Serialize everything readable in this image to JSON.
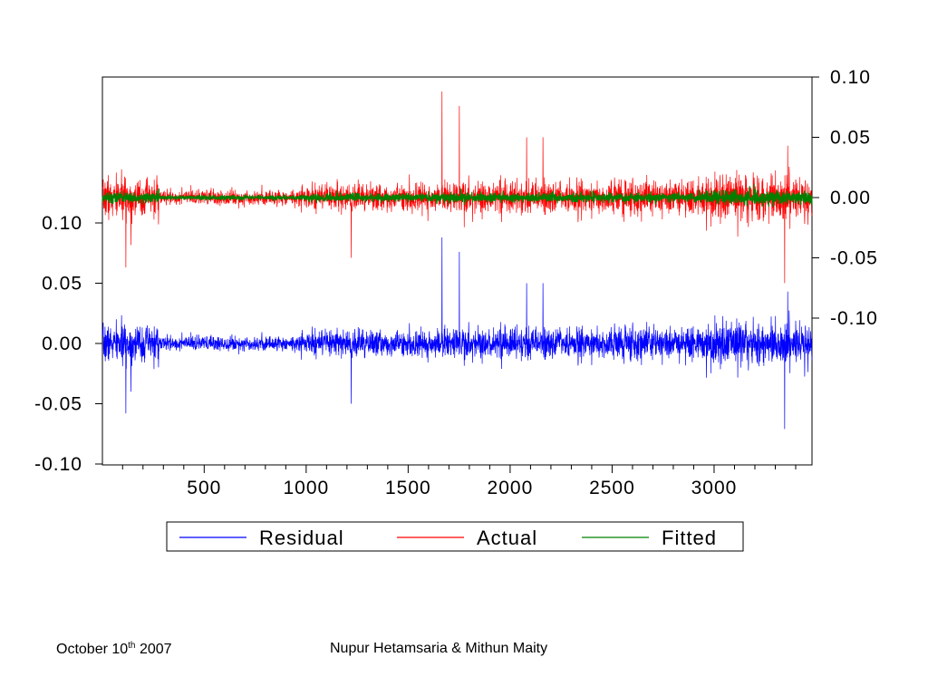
{
  "chart_data": {
    "type": "line",
    "title": "",
    "x_ticks": [
      500,
      1000,
      1500,
      2000,
      2500,
      3000
    ],
    "x_range": [
      1,
      3480
    ],
    "left_axis": {
      "ticks": [
        "0.10",
        "0.05",
        "0.00",
        "-0.05",
        "-0.10"
      ],
      "values": [
        0.1,
        0.05,
        0.0,
        -0.05,
        -0.1
      ],
      "ylim": [
        -0.1,
        0.1
      ]
    },
    "right_axis": {
      "ticks": [
        "0.10",
        "0.05",
        "0.00",
        "-0.05",
        "-0.10"
      ],
      "values": [
        0.1,
        0.05,
        0.0,
        -0.05,
        -0.1
      ],
      "ylim": [
        -0.1,
        0.1
      ]
    },
    "legend_position": "bottom",
    "series": [
      {
        "name": "Residual",
        "axis": "left",
        "color": "#0000ff",
        "n_points": 3480,
        "noise_level": 0.005,
        "spikes": [
          {
            "x": 115,
            "value": -0.058
          },
          {
            "x": 140,
            "value": -0.04
          },
          {
            "x": 1220,
            "value": -0.05
          },
          {
            "x": 1665,
            "value": 0.088
          },
          {
            "x": 1750,
            "value": 0.076
          },
          {
            "x": 2080,
            "value": 0.05
          },
          {
            "x": 2160,
            "value": 0.05
          },
          {
            "x": 3345,
            "value": -0.071
          },
          {
            "x": 3360,
            "value": 0.043
          }
        ]
      },
      {
        "name": "Actual",
        "axis": "right",
        "color": "#ff0000",
        "n_points": 3480,
        "noise_level": 0.005,
        "spikes": [
          {
            "x": 115,
            "value": -0.058
          },
          {
            "x": 1220,
            "value": -0.05
          },
          {
            "x": 1665,
            "value": 0.088
          },
          {
            "x": 1750,
            "value": 0.076
          },
          {
            "x": 2080,
            "value": 0.05
          },
          {
            "x": 2160,
            "value": 0.05
          },
          {
            "x": 3345,
            "value": -0.071
          },
          {
            "x": 3360,
            "value": 0.043
          }
        ]
      },
      {
        "name": "Fitted",
        "axis": "right",
        "color": "#008000",
        "n_points": 3480,
        "noise_level": 0.0015
      }
    ]
  },
  "legend": {
    "items": [
      "Residual",
      "Actual",
      "Fitted"
    ]
  },
  "footer": {
    "date_prefix": "October 10",
    "date_sup": "th",
    "date_suffix": " 2007",
    "authors": "Nupur Hetamsaria & Mithun Maity"
  }
}
